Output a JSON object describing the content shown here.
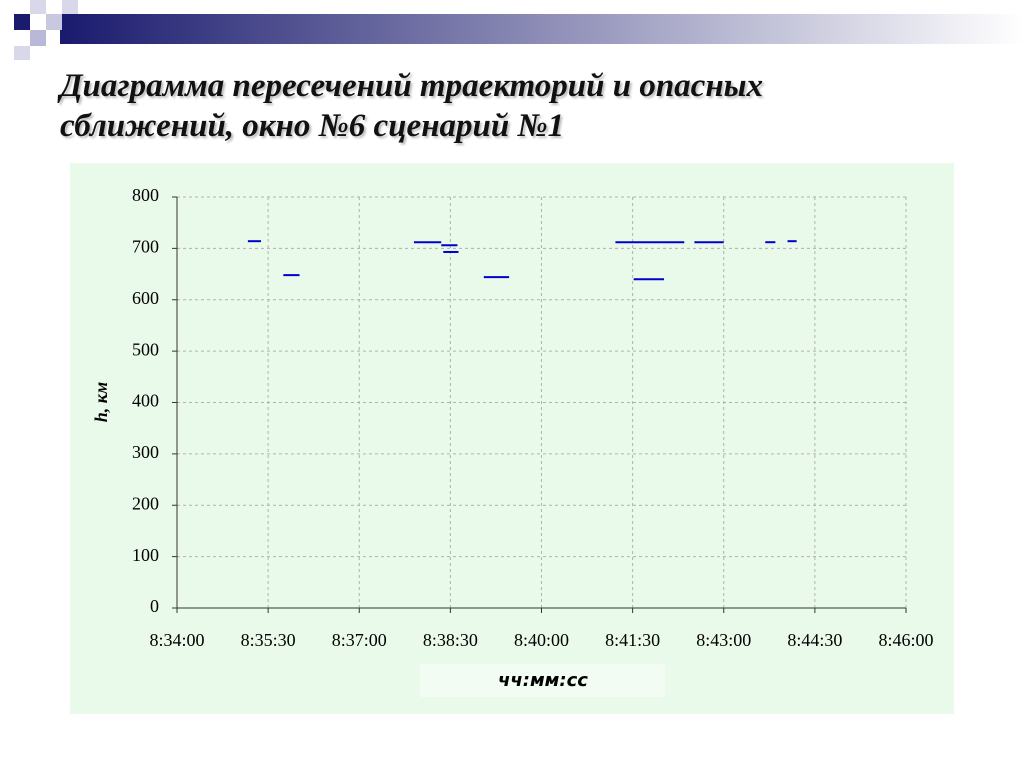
{
  "chart_data": {
    "type": "line",
    "title": [
      "Диаграмма пересечений траекторий и опасных",
      "сближений, окно №6 сценарий №1"
    ],
    "y_label": "h, км",
    "x_label": "чч:мм:сс",
    "xlim": [
      30840,
      31560
    ],
    "xticks": [
      {
        "value": 30840,
        "label": "8:34:00"
      },
      {
        "value": 30930,
        "label": "8:35:30"
      },
      {
        "value": 31020,
        "label": "8:37:00"
      },
      {
        "value": 31110,
        "label": "8:38:30"
      },
      {
        "value": 31200,
        "label": "8:40:00"
      },
      {
        "value": 31290,
        "label": "8:41:30"
      },
      {
        "value": 31380,
        "label": "8:43:00"
      },
      {
        "value": 31470,
        "label": "8:44:30"
      },
      {
        "value": 31560,
        "label": "8:46:00"
      }
    ],
    "ylim": [
      0,
      800
    ],
    "yticks": [
      0,
      100,
      200,
      300,
      400,
      500,
      600,
      700,
      800
    ],
    "grid": true,
    "series": [
      {
        "color": "#0000cc",
        "x": [
          30910,
          30923
        ],
        "values": [
          714,
          714
        ]
      },
      {
        "color": "#0000cc",
        "x": [
          30945,
          30961
        ],
        "values": [
          648,
          648
        ]
      },
      {
        "color": "#0000cc",
        "x": [
          31074,
          31101
        ],
        "values": [
          712,
          712
        ]
      },
      {
        "color": "#0000cc",
        "x": [
          31101,
          31117
        ],
        "values": [
          706,
          706
        ]
      },
      {
        "color": "#0000cc",
        "x": [
          31103,
          31118
        ],
        "values": [
          693,
          693
        ]
      },
      {
        "color": "#0000cc",
        "x": [
          31143,
          31168
        ],
        "values": [
          644,
          644
        ]
      },
      {
        "color": "#0000cc",
        "x": [
          31273,
          31341
        ],
        "values": [
          712,
          712
        ]
      },
      {
        "color": "#0000cc",
        "x": [
          31291,
          31321
        ],
        "values": [
          640,
          640
        ]
      },
      {
        "color": "#0000cc",
        "x": [
          31351,
          31380
        ],
        "values": [
          712,
          712
        ]
      },
      {
        "color": "#0000cc",
        "x": [
          31421,
          31431
        ],
        "values": [
          712,
          712
        ]
      },
      {
        "color": "#0000cc",
        "x": [
          31443,
          31452
        ],
        "values": [
          714,
          714
        ]
      }
    ]
  }
}
